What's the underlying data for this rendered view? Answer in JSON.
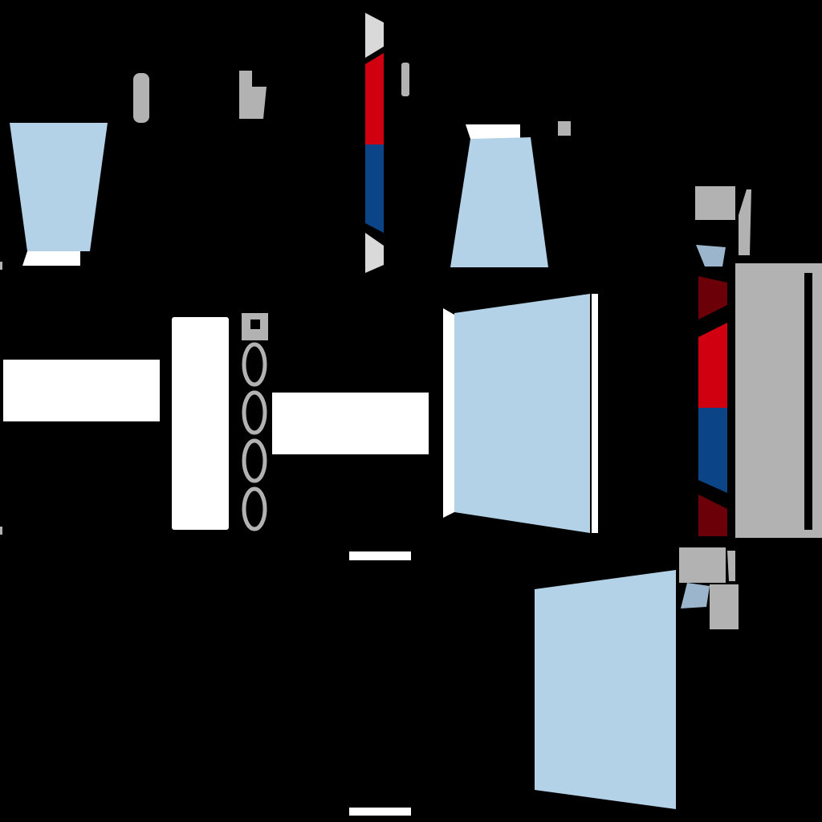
{
  "atlas": {
    "background": "#000000",
    "palette": {
      "white": "#ffffff",
      "light_blue": "#b4d2e7",
      "muted_blue": "#9bb6cc",
      "gray": "#b2b2b2",
      "light_gray": "#d9d9d9",
      "red": "#d10010",
      "navy": "#0b4487",
      "dark_red": "#6b0008"
    },
    "regions": [
      {
        "name": "top-left-light-blue-trapezoid",
        "fill": "light_blue"
      },
      {
        "name": "top-left-white-strip",
        "fill": "white"
      },
      {
        "name": "top-left-gray-bar",
        "fill": "gray"
      },
      {
        "name": "top-gray-block",
        "fill": "gray"
      },
      {
        "name": "center-stripe-top-gray-cap",
        "fill": "light_gray"
      },
      {
        "name": "center-stripe-red-band",
        "fill": "red"
      },
      {
        "name": "center-stripe-navy-band",
        "fill": "navy"
      },
      {
        "name": "center-stripe-bottom-gray-cap",
        "fill": "light_gray"
      },
      {
        "name": "center-small-gray-bar",
        "fill": "gray"
      },
      {
        "name": "top-center-light-blue-trapezoid",
        "fill": "light_blue"
      },
      {
        "name": "top-center-white-strip",
        "fill": "white"
      },
      {
        "name": "top-right-small-gray-square",
        "fill": "gray"
      },
      {
        "name": "left-white-rectangle",
        "fill": "white"
      },
      {
        "name": "left-tall-white-panel",
        "fill": "white"
      },
      {
        "name": "gray-link-top-block",
        "fill": "gray"
      },
      {
        "name": "gray-chain-link-1",
        "fill": "gray"
      },
      {
        "name": "gray-chain-link-2",
        "fill": "gray"
      },
      {
        "name": "gray-chain-link-3",
        "fill": "gray"
      },
      {
        "name": "gray-chain-link-4",
        "fill": "gray"
      },
      {
        "name": "center-white-rectangle",
        "fill": "white"
      },
      {
        "name": "center-light-blue-panel",
        "fill": "light_blue"
      },
      {
        "name": "center-panel-white-edge",
        "fill": "white"
      },
      {
        "name": "right-gray-cluster-top",
        "fill": "gray"
      },
      {
        "name": "right-muted-blue-chip-top",
        "fill": "muted_blue"
      },
      {
        "name": "right-stripe-dark-red-top",
        "fill": "dark_red"
      },
      {
        "name": "right-stripe-red-band",
        "fill": "red"
      },
      {
        "name": "right-stripe-navy-band",
        "fill": "navy"
      },
      {
        "name": "right-stripe-dark-red-bottom",
        "fill": "dark_red"
      },
      {
        "name": "right-gray-panel",
        "fill": "gray"
      },
      {
        "name": "right-gray-cluster-bottom",
        "fill": "gray"
      },
      {
        "name": "right-muted-blue-chip-bottom",
        "fill": "muted_blue"
      },
      {
        "name": "bottom-white-strip-1",
        "fill": "white"
      },
      {
        "name": "bottom-white-strip-2",
        "fill": "white"
      },
      {
        "name": "bottom-light-blue-panel",
        "fill": "light_blue"
      }
    ]
  }
}
